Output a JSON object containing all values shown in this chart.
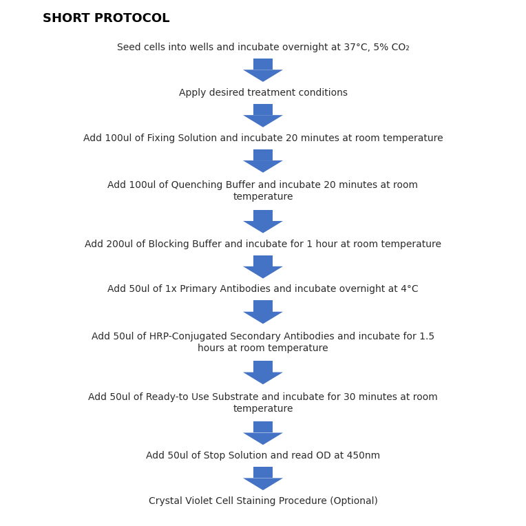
{
  "title": "SHORT PROTOCOL",
  "title_fontsize": 13,
  "title_fontweight": "bold",
  "steps": [
    "Seed cells into wells and incubate overnight at 37°C, 5% CO₂",
    "Apply desired treatment conditions",
    "Add 100ul of Fixing Solution and incubate 20 minutes at room temperature",
    "Add 100ul of Quenching Buffer and incubate 20 minutes at room\ntemperature",
    "Add 200ul of Blocking Buffer and incubate for 1 hour at room temperature",
    "Add 50ul of 1x Primary Antibodies and incubate overnight at 4°C",
    "Add 50ul of HRP-Conjugated Secondary Antibodies and incubate for 1.5\nhours at room temperature",
    "Add 50ul of Ready-to Use Substrate and incubate for 30 minutes at room\ntemperature",
    "Add 50ul of Stop Solution and read OD at 450nm",
    "Crystal Violet Cell Staining Procedure (Optional)"
  ],
  "arrow_color": "#4472C4",
  "text_color": "#2b2b2b",
  "background_color": "#ffffff",
  "text_fontsize": 10,
  "fig_width": 7.64,
  "fig_height": 7.64,
  "dpi": 100
}
